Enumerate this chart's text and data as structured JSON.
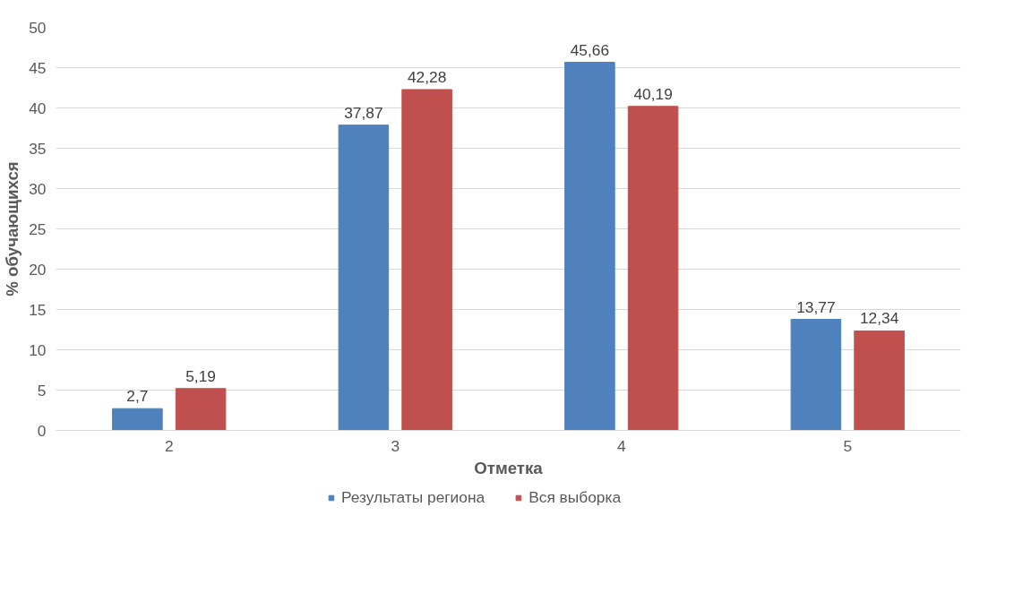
{
  "chart_data": {
    "type": "bar",
    "xlabel": "Отметка",
    "ylabel": "% обучающихся",
    "categories": [
      "2",
      "3",
      "4",
      "5"
    ],
    "series": [
      {
        "name": "Результаты региона",
        "color": "#4f81bd",
        "values": [
          2.7,
          37.87,
          45.66,
          13.77
        ],
        "value_labels": [
          "2,7",
          "37,87",
          "45,66",
          "13,77"
        ]
      },
      {
        "name": "Вся выборка",
        "color": "#c0504d",
        "values": [
          5.19,
          42.28,
          40.19,
          12.34
        ],
        "value_labels": [
          "5,19",
          "42,28",
          "40,19",
          "12,34"
        ]
      }
    ],
    "ylim": [
      0,
      50
    ],
    "yticks": [
      0,
      5,
      10,
      15,
      20,
      25,
      30,
      35,
      40,
      45,
      50
    ],
    "grid": "y",
    "legend": "bottom"
  }
}
